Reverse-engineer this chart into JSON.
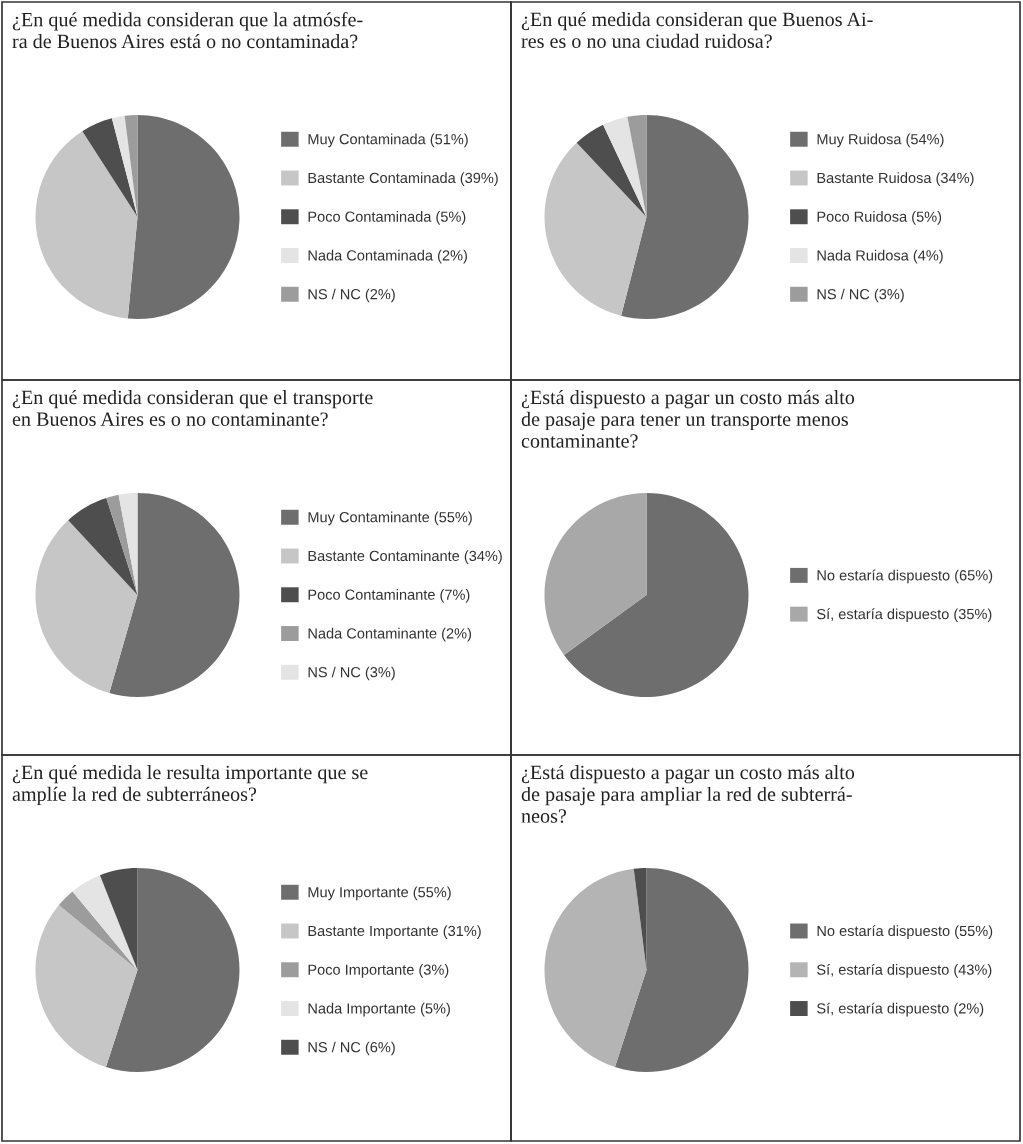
{
  "chart_data": [
    {
      "type": "pie",
      "title": "¿En qué medida consideran que la atmósfe-\nra de Buenos Aires está o no contaminada?",
      "legend": "right",
      "categories": [
        "Muy Contaminada (51%)",
        "Bastante Contaminada (39%)",
        "Poco Contaminada (5%)",
        "Nada Contaminada (2%)",
        "NS / NC (2%)"
      ],
      "values": [
        51,
        39,
        5,
        2,
        2
      ],
      "colors": [
        "#6e6e6e",
        "#c6c6c6",
        "#4e4e4e",
        "#e4e4e4",
        "#9c9c9c"
      ]
    },
    {
      "type": "pie",
      "title": "¿En qué medida consideran que Buenos Ai-\nres es o no una ciudad ruidosa?",
      "legend": "right",
      "categories": [
        "Muy Ruidosa (54%)",
        "Bastante Ruidosa (34%)",
        "Poco Ruidosa (5%)",
        "Nada Ruidosa (4%)",
        "NS / NC (3%)"
      ],
      "values": [
        54,
        34,
        5,
        4,
        3
      ],
      "colors": [
        "#6e6e6e",
        "#c6c6c6",
        "#4e4e4e",
        "#e4e4e4",
        "#9c9c9c"
      ]
    },
    {
      "type": "pie",
      "title": "¿En qué medida consideran que el transporte\nen Buenos Aires es o no contaminante?",
      "legend": "right",
      "categories": [
        "Muy Contaminante (55%)",
        "Bastante Contaminante (34%)",
        "Poco Contaminante (7%)",
        "Nada Contaminante (2%)",
        "NS / NC (3%)"
      ],
      "values": [
        55,
        34,
        7,
        2,
        3
      ],
      "colors": [
        "#6e6e6e",
        "#c6c6c6",
        "#4e4e4e",
        "#9c9c9c",
        "#e4e4e4"
      ]
    },
    {
      "type": "pie",
      "title": "¿Está dispuesto a pagar un costo más alto\nde pasaje para tener un transporte menos\ncontaminante?",
      "legend": "right",
      "categories": [
        "No estaría dispuesto (65%)",
        "Sí, estaría dispuesto (35%)"
      ],
      "values": [
        65,
        35
      ],
      "colors": [
        "#6e6e6e",
        "#a8a8a8"
      ]
    },
    {
      "type": "pie",
      "title": "¿En qué medida le resulta importante que se\namplíe la red de subterráneos?",
      "legend": "right",
      "categories": [
        "Muy Importante (55%)",
        "Bastante Importante (31%)",
        "Poco Importante (3%)",
        "Nada Importante (5%)",
        "NS / NC (6%)"
      ],
      "values": [
        55,
        31,
        3,
        5,
        6
      ],
      "colors": [
        "#6e6e6e",
        "#c6c6c6",
        "#9c9c9c",
        "#e4e4e4",
        "#4e4e4e"
      ]
    },
    {
      "type": "pie",
      "title": "¿Está dispuesto a pagar un costo más alto\nde pasaje para ampliar la red de subterrá-\nneos?",
      "legend": "right",
      "categories": [
        "No estaría dispuesto (55%)",
        "Sí, estaría dispuesto (43%)",
        "Sí, estaría dispuesto (2%)"
      ],
      "values": [
        55,
        43,
        2
      ],
      "colors": [
        "#6e6e6e",
        "#b4b4b4",
        "#4e4e4e"
      ]
    }
  ]
}
